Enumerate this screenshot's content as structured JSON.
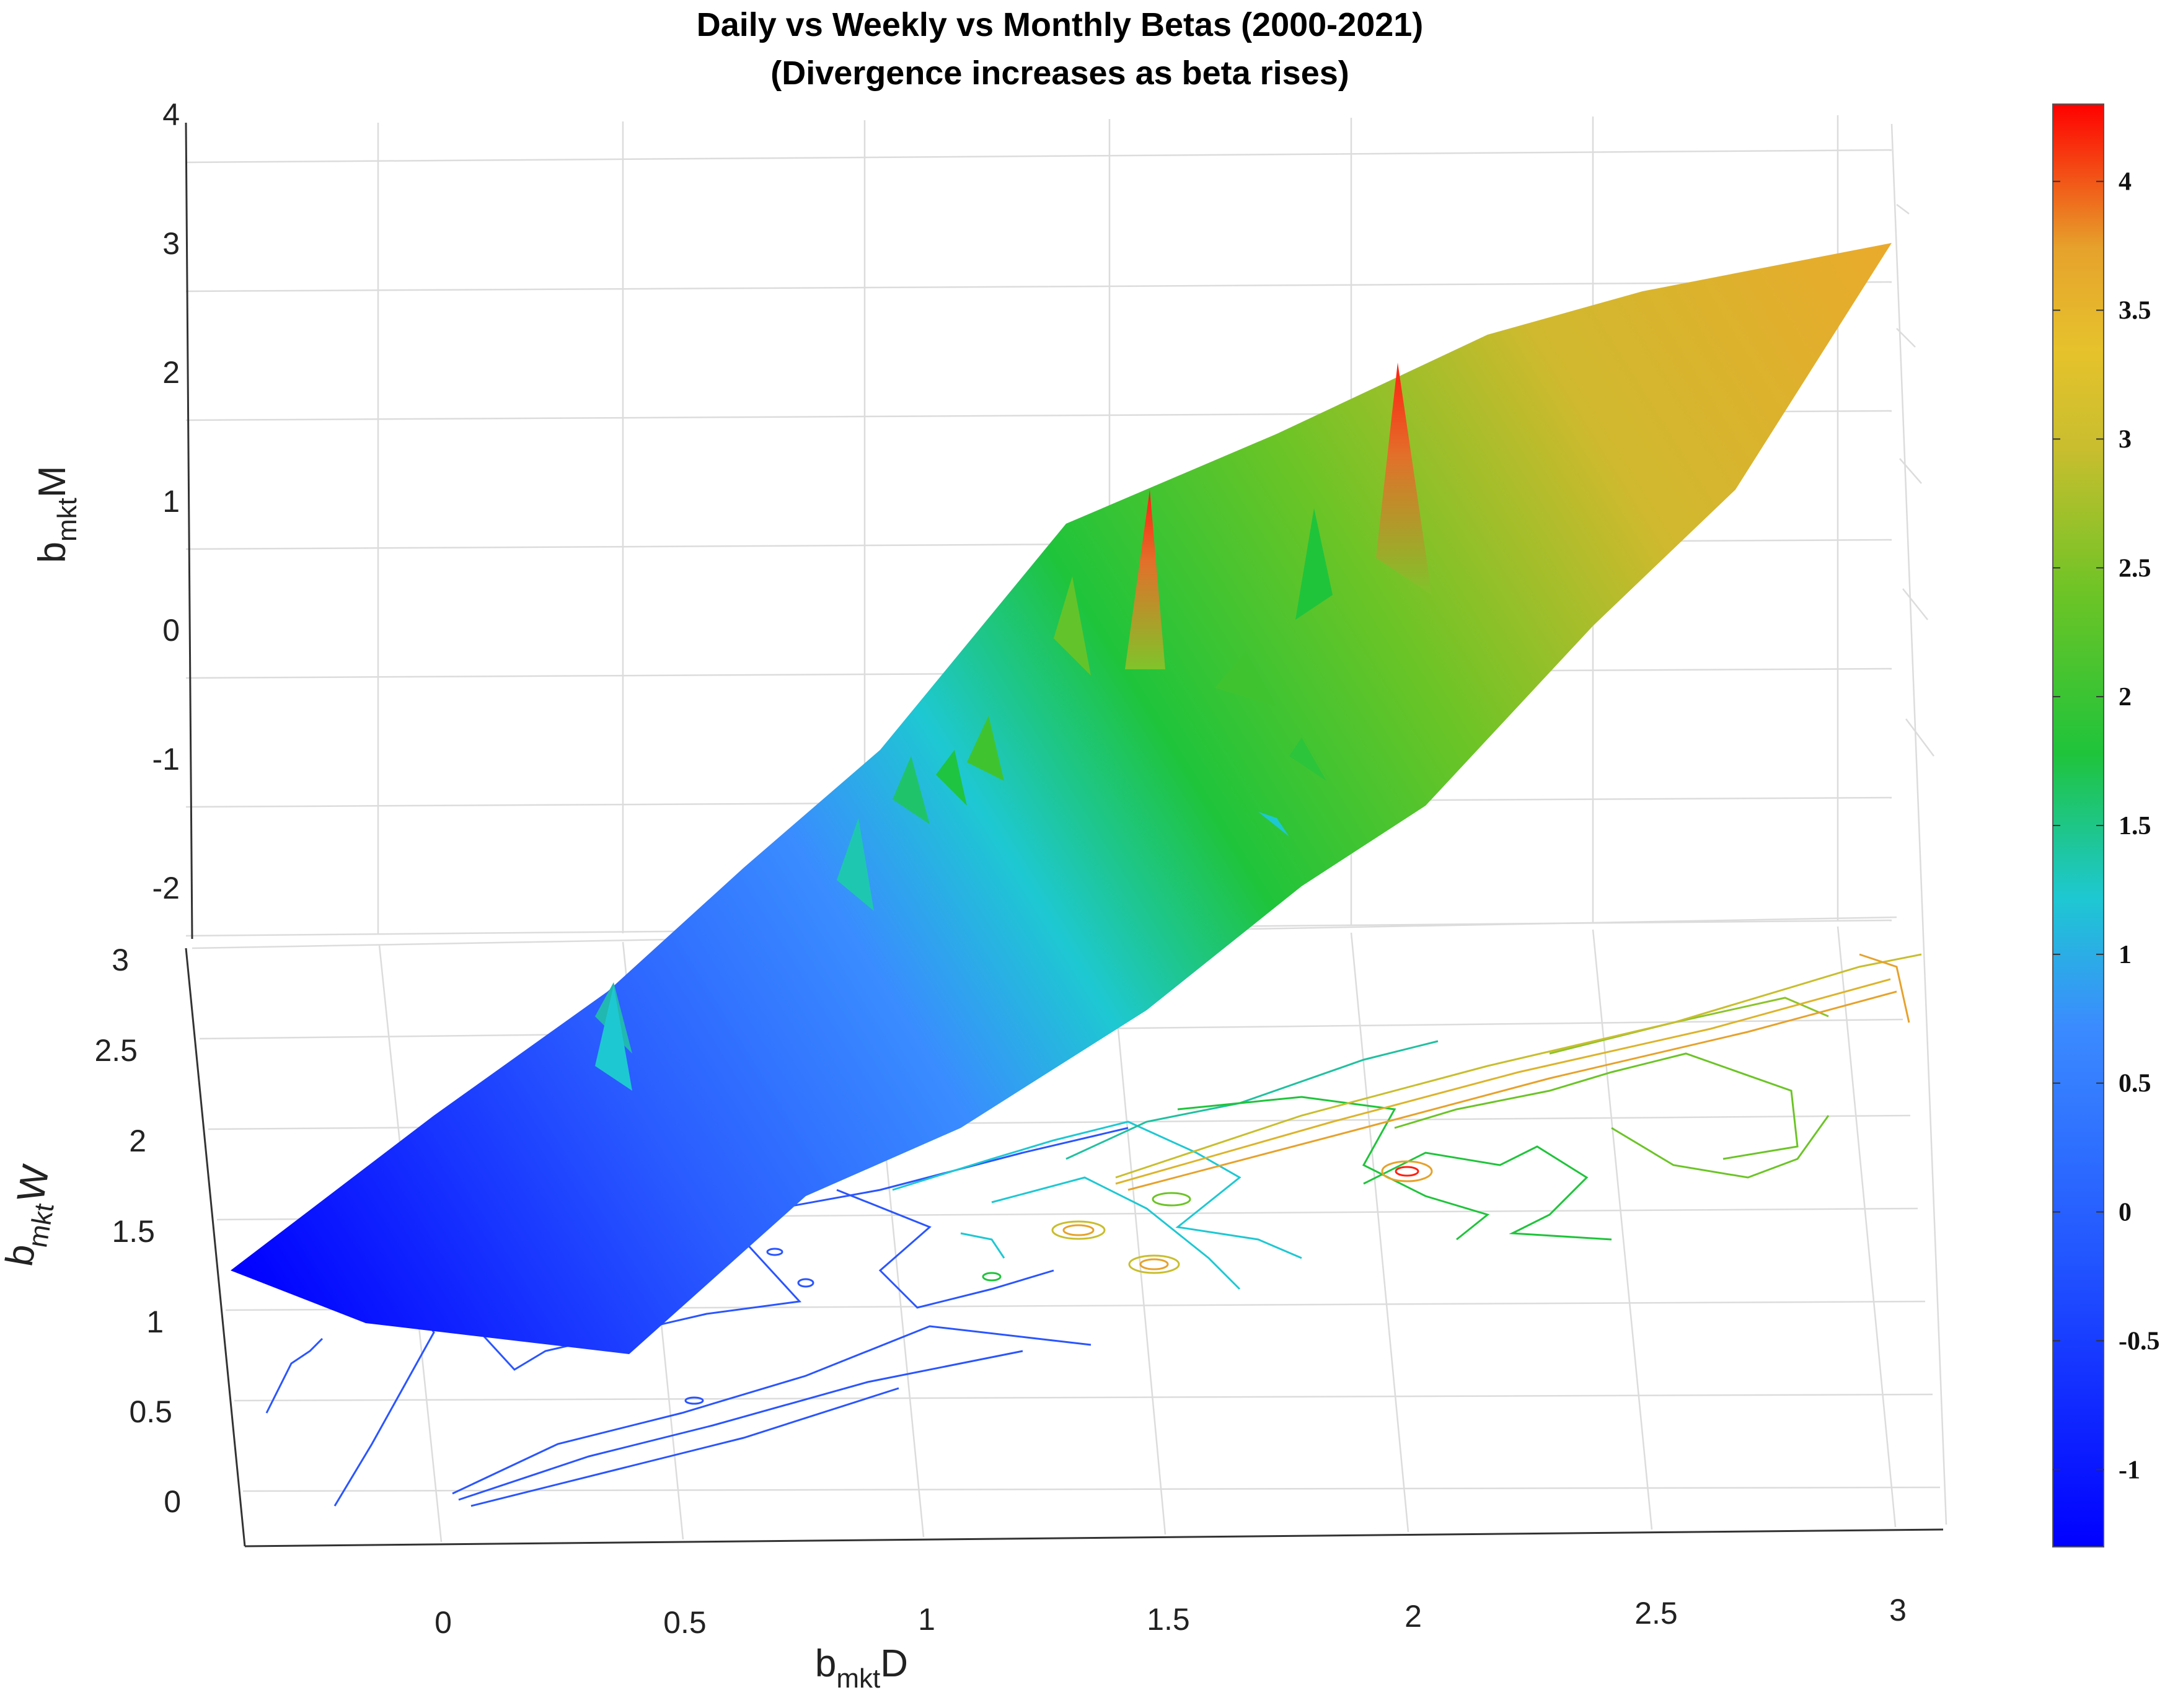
{
  "chart_data": {
    "type": "surface",
    "title": [
      "Daily vs Weekly vs Monthly Betas (2000-2021)",
      "(Divergence increases as beta rises)"
    ],
    "xlabel": {
      "main": "b",
      "sub": "mkt",
      "suffix": "D"
    },
    "ylabel": {
      "main": "b",
      "sub": "mkt",
      "suffix": "W"
    },
    "zlabel": {
      "main": "b",
      "sub": "mkt",
      "suffix": "M"
    },
    "x_ticks": [
      "0",
      "0.5",
      "1",
      "1.5",
      "2",
      "2.5",
      "3"
    ],
    "y_ticks": [
      "0",
      "0.5",
      "1",
      "1.5",
      "2",
      "2.5",
      "3"
    ],
    "z_ticks": [
      "-2",
      "-1",
      "0",
      "1",
      "2",
      "3",
      "4"
    ],
    "xlim": [
      -0.4,
      3.1
    ],
    "ylim": [
      -0.2,
      3.1
    ],
    "zlim": [
      -2.4,
      4
    ],
    "colorbar": {
      "ticks": [
        "-1",
        "-0.5",
        "0",
        "0.5",
        "1",
        "1.5",
        "2",
        "2.5",
        "3",
        "3.5",
        "4"
      ],
      "clim": [
        -1.3,
        4.3
      ],
      "colormap": [
        "#0000ff",
        "#2255ff",
        "#3b8bff",
        "#1ec8d2",
        "#1fc43b",
        "#6cc426",
        "#c8be2e",
        "#e6a22c",
        "#ff0000"
      ]
    },
    "surface_profile": [
      {
        "x": -0.4,
        "y": 1.25,
        "z": -0.6
      },
      {
        "x": 0.4,
        "y": 1.0,
        "z": -0.4
      },
      {
        "x": 1.3,
        "y": 1.6,
        "z": 0.6
      },
      {
        "x": 1.5,
        "y": 1.7,
        "z": 1.3
      },
      {
        "x": 2.0,
        "y": 1.9,
        "z": 2.5
      },
      {
        "x": 2.5,
        "y": 2.1,
        "z": 2.9
      },
      {
        "x": 3.0,
        "y": 2.3,
        "z": 3.3
      }
    ],
    "grid": true,
    "legend": "none"
  }
}
